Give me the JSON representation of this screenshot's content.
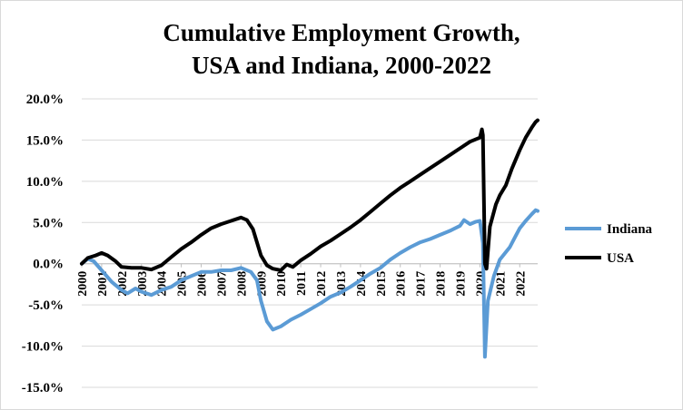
{
  "title_lines": [
    "Cumulative Employment Growth,",
    "USA and Indiana, 2000-2022"
  ],
  "chart_data": {
    "type": "line",
    "title": "Cumulative Employment Growth, USA and Indiana, 2000-2022",
    "xlabel": "",
    "ylabel": "",
    "xlim": [
      2000,
      2022.9
    ],
    "ylim": [
      -15,
      20
    ],
    "y_ticks": [
      20,
      15,
      10,
      5,
      0,
      -5,
      -10,
      -15
    ],
    "y_tick_labels": [
      "20.0%",
      "15.0%",
      "10.0%",
      "5.0%",
      "0.0%",
      "-5.0%",
      "-10.0%",
      "-15.0%"
    ],
    "x_ticks": [
      2000,
      2001,
      2002,
      2003,
      2004,
      2005,
      2006,
      2007,
      2008,
      2009,
      2010,
      2011,
      2012,
      2013,
      2014,
      2015,
      2016,
      2017,
      2018,
      2019,
      2020,
      2021,
      2022
    ],
    "x_tick_labels": [
      "2000",
      "2001",
      "2002",
      "2003",
      "2004",
      "2005",
      "2006",
      "2007",
      "2008",
      "2009",
      "2010",
      "2011",
      "2012",
      "2013",
      "2014",
      "2015",
      "2016",
      "2017",
      "2018",
      "2019",
      "2020",
      "2021",
      "2022"
    ],
    "grid": "horizontal",
    "legend_position": "right",
    "series": [
      {
        "name": "Indiana",
        "color": "#5b9bd5",
        "points": [
          [
            2000.0,
            0.0
          ],
          [
            2000.3,
            0.6
          ],
          [
            2000.6,
            0.3
          ],
          [
            2001.0,
            -0.8
          ],
          [
            2001.5,
            -2.2
          ],
          [
            2002.0,
            -3.2
          ],
          [
            2002.3,
            -3.6
          ],
          [
            2002.7,
            -3.0
          ],
          [
            2003.0,
            -3.4
          ],
          [
            2003.5,
            -3.8
          ],
          [
            2004.0,
            -3.2
          ],
          [
            2004.5,
            -2.8
          ],
          [
            2005.0,
            -2.0
          ],
          [
            2005.5,
            -1.5
          ],
          [
            2006.0,
            -1.0
          ],
          [
            2006.5,
            -1.0
          ],
          [
            2007.0,
            -0.8
          ],
          [
            2007.5,
            -0.8
          ],
          [
            2008.0,
            -0.5
          ],
          [
            2008.5,
            -1.0
          ],
          [
            2008.8,
            -2.0
          ],
          [
            2009.0,
            -4.5
          ],
          [
            2009.3,
            -7.0
          ],
          [
            2009.6,
            -8.0
          ],
          [
            2010.0,
            -7.6
          ],
          [
            2010.5,
            -6.8
          ],
          [
            2011.0,
            -6.2
          ],
          [
            2011.5,
            -5.5
          ],
          [
            2012.0,
            -4.8
          ],
          [
            2012.5,
            -4.0
          ],
          [
            2013.0,
            -3.5
          ],
          [
            2013.5,
            -2.8
          ],
          [
            2014.0,
            -2.0
          ],
          [
            2014.5,
            -1.2
          ],
          [
            2015.0,
            -0.5
          ],
          [
            2015.5,
            0.5
          ],
          [
            2016.0,
            1.3
          ],
          [
            2016.5,
            2.0
          ],
          [
            2017.0,
            2.6
          ],
          [
            2017.5,
            3.0
          ],
          [
            2018.0,
            3.5
          ],
          [
            2018.5,
            4.0
          ],
          [
            2019.0,
            4.6
          ],
          [
            2019.2,
            5.3
          ],
          [
            2019.5,
            4.8
          ],
          [
            2019.8,
            5.1
          ],
          [
            2020.0,
            5.2
          ],
          [
            2020.15,
            2.5
          ],
          [
            2020.25,
            -11.3
          ],
          [
            2020.4,
            -4.5
          ],
          [
            2020.7,
            -1.5
          ],
          [
            2021.0,
            0.5
          ],
          [
            2021.3,
            1.4
          ],
          [
            2021.5,
            2.0
          ],
          [
            2021.8,
            3.4
          ],
          [
            2022.0,
            4.3
          ],
          [
            2022.3,
            5.2
          ],
          [
            2022.6,
            6.0
          ],
          [
            2022.8,
            6.5
          ],
          [
            2022.9,
            6.4
          ]
        ]
      },
      {
        "name": "USA",
        "color": "#000000",
        "points": [
          [
            2000.0,
            0.0
          ],
          [
            2000.3,
            0.7
          ],
          [
            2000.7,
            1.0
          ],
          [
            2001.0,
            1.3
          ],
          [
            2001.3,
            1.0
          ],
          [
            2001.7,
            0.3
          ],
          [
            2002.0,
            -0.4
          ],
          [
            2002.5,
            -0.5
          ],
          [
            2003.0,
            -0.5
          ],
          [
            2003.5,
            -0.7
          ],
          [
            2004.0,
            -0.2
          ],
          [
            2004.5,
            0.8
          ],
          [
            2005.0,
            1.8
          ],
          [
            2005.5,
            2.6
          ],
          [
            2006.0,
            3.5
          ],
          [
            2006.5,
            4.3
          ],
          [
            2007.0,
            4.8
          ],
          [
            2007.5,
            5.2
          ],
          [
            2008.0,
            5.6
          ],
          [
            2008.3,
            5.3
          ],
          [
            2008.6,
            4.2
          ],
          [
            2009.0,
            1.0
          ],
          [
            2009.3,
            -0.2
          ],
          [
            2009.6,
            -0.6
          ],
          [
            2010.0,
            -0.8
          ],
          [
            2010.3,
            -0.1
          ],
          [
            2010.6,
            -0.4
          ],
          [
            2011.0,
            0.4
          ],
          [
            2011.5,
            1.2
          ],
          [
            2012.0,
            2.1
          ],
          [
            2012.5,
            2.8
          ],
          [
            2013.0,
            3.6
          ],
          [
            2013.5,
            4.4
          ],
          [
            2014.0,
            5.3
          ],
          [
            2014.5,
            6.3
          ],
          [
            2015.0,
            7.3
          ],
          [
            2015.5,
            8.3
          ],
          [
            2016.0,
            9.2
          ],
          [
            2016.5,
            10.0
          ],
          [
            2017.0,
            10.8
          ],
          [
            2017.5,
            11.6
          ],
          [
            2018.0,
            12.4
          ],
          [
            2018.5,
            13.2
          ],
          [
            2019.0,
            14.0
          ],
          [
            2019.5,
            14.8
          ],
          [
            2020.0,
            15.3
          ],
          [
            2020.1,
            16.3
          ],
          [
            2020.15,
            15.6
          ],
          [
            2020.25,
            0.0
          ],
          [
            2020.33,
            -0.6
          ],
          [
            2020.5,
            4.5
          ],
          [
            2020.8,
            7.2
          ],
          [
            2021.0,
            8.3
          ],
          [
            2021.3,
            9.5
          ],
          [
            2021.6,
            11.5
          ],
          [
            2022.0,
            13.8
          ],
          [
            2022.3,
            15.3
          ],
          [
            2022.6,
            16.5
          ],
          [
            2022.8,
            17.2
          ],
          [
            2022.9,
            17.4
          ]
        ]
      }
    ]
  }
}
